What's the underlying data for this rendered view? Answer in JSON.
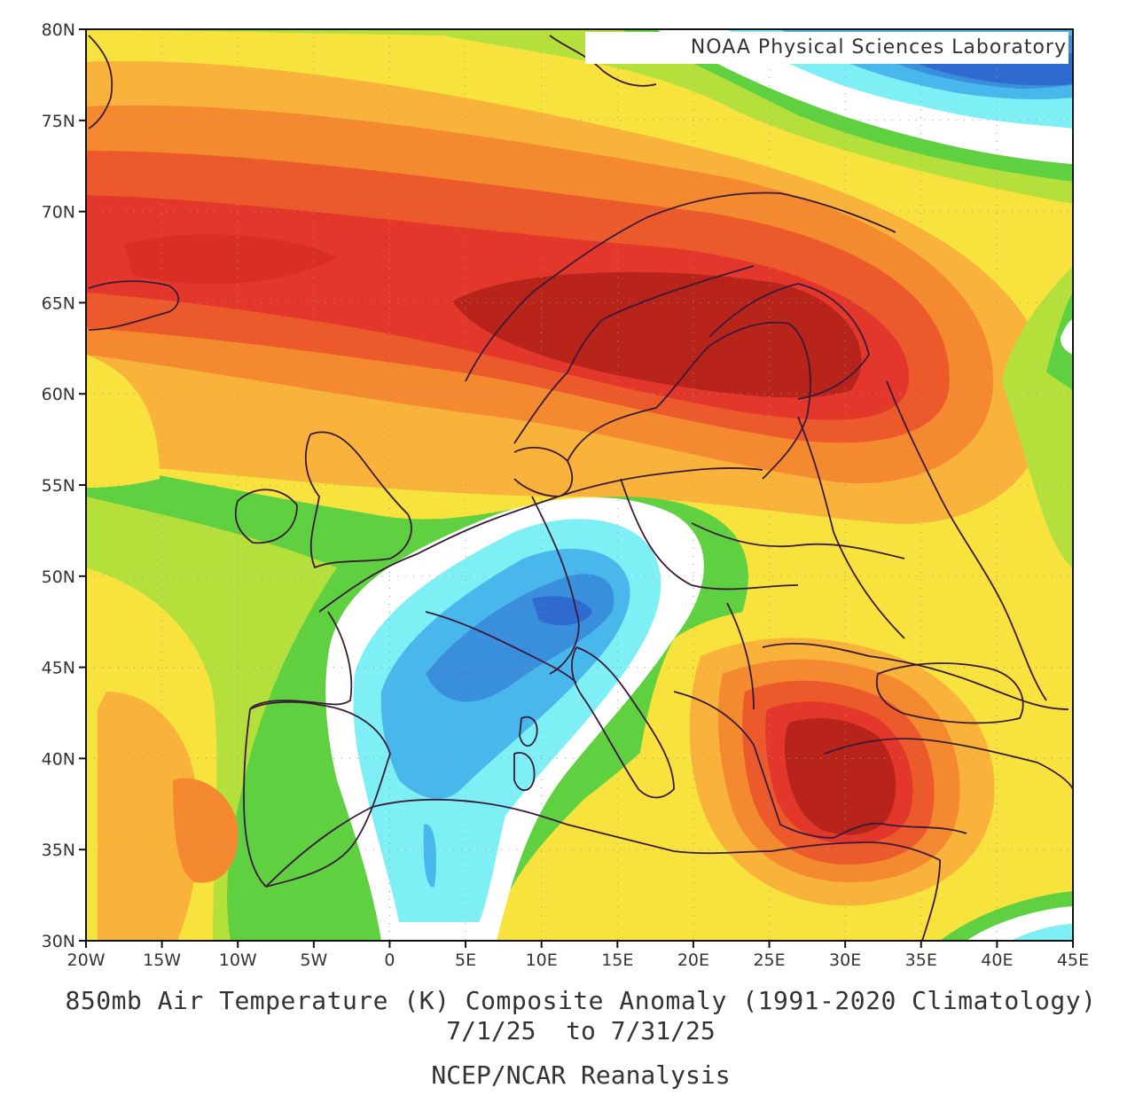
{
  "map": {
    "credit": "NOAA Physical Sciences Laboratory",
    "caption": {
      "line1": "850mb Air Temperature (K) Composite Anomaly (1991-2020 Climatology)",
      "line2": "7/1/25  to 7/31/25",
      "line3": "NCEP/NCAR Reanalysis"
    },
    "lat_ticks": [
      "80N",
      "75N",
      "70N",
      "65N",
      "60N",
      "55N",
      "50N",
      "45N",
      "40N",
      "35N",
      "30N"
    ],
    "lon_ticks": [
      "20W",
      "15W",
      "10W",
      "5W",
      "0",
      "5E",
      "10E",
      "15E",
      "20E",
      "25E",
      "30E",
      "35E",
      "40E",
      "45E"
    ],
    "extent": {
      "lon_min": -20,
      "lon_max": 45,
      "lat_min": 30,
      "lat_max": 80
    },
    "colors": {
      "dark_red": "#b8231a",
      "red": "#e2372a",
      "red_orange": "#ec5a2c",
      "orange": "#f4892f",
      "light_orange": "#f9b23a",
      "yellow": "#f8e23e",
      "light_yellow": "#f2f25c",
      "yellow_green": "#b5e03c",
      "green": "#5fd040",
      "white": "#ffffff",
      "cyan": "#7ef0f5",
      "light_blue": "#48b8ec",
      "blue": "#3a8fdc",
      "deep_blue": "#2f6ad0"
    }
  }
}
